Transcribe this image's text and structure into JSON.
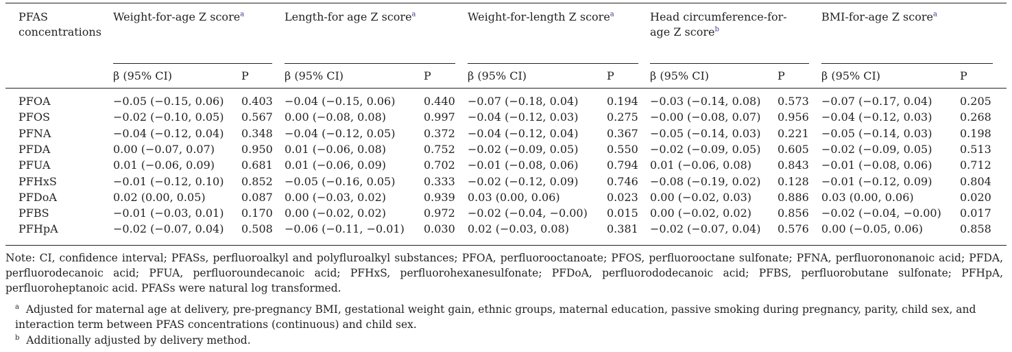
{
  "header": {
    "col0": "PFAS concentrations",
    "groups": [
      {
        "label": "Weight-for-age Z score",
        "sup": "a"
      },
      {
        "label": "Length-for age Z score",
        "sup": "a"
      },
      {
        "label": "Weight-for-length Z score",
        "sup": "a"
      },
      {
        "label": "Head circumference-for-age Z score",
        "sup": "b"
      },
      {
        "label": "BMI-for-age Z score",
        "sup": "a"
      }
    ],
    "beta_label": "β (95% CI)",
    "p_label": "P"
  },
  "rows": [
    {
      "name": "PFOA",
      "cells": [
        "−0.05 (−0.15, 0.06)",
        "0.403",
        "−0.04 (−0.15, 0.06)",
        "0.440",
        "−0.07 (−0.18, 0.04)",
        "0.194",
        "−0.03 (−0.14, 0.08)",
        "0.573",
        "−0.07 (−0.17, 0.04)",
        "0.205"
      ]
    },
    {
      "name": "PFOS",
      "cells": [
        "−0.02 (−0.10, 0.05)",
        "0.567",
        "0.00 (−0.08, 0.08)",
        "0.997",
        "−0.04 (−0.12, 0.03)",
        "0.275",
        "−0.00 (−0.08, 0.07)",
        "0.956",
        "−0.04 (−0.12, 0.03)",
        "0.268"
      ]
    },
    {
      "name": "PFNA",
      "cells": [
        "−0.04 (−0.12, 0.04)",
        "0.348",
        "−0.04 (−0.12, 0.05)",
        "0.372",
        "−0.04 (−0.12, 0.04)",
        "0.367",
        "−0.05 (−0.14, 0.03)",
        "0.221",
        "−0.05 (−0.14, 0.03)",
        "0.198"
      ]
    },
    {
      "name": "PFDA",
      "cells": [
        "0.00 (−0.07, 0.07)",
        "0.950",
        "0.01 (−0.06, 0.08)",
        "0.752",
        "−0.02 (−0.09, 0.05)",
        "0.550",
        "−0.02 (−0.09, 0.05)",
        "0.605",
        "−0.02 (−0.09, 0.05)",
        "0.513"
      ]
    },
    {
      "name": "PFUA",
      "cells": [
        "0.01 (−0.06, 0.09)",
        "0.681",
        "0.01 (−0.06, 0.09)",
        "0.702",
        "−0.01 (−0.08, 0.06)",
        "0.794",
        "0.01 (−0.06, 0.08)",
        "0.843",
        "−0.01 (−0.08, 0.06)",
        "0.712"
      ]
    },
    {
      "name": "PFHxS",
      "cells": [
        "−0.01 (−0.12, 0.10)",
        "0.852",
        "−0.05 (−0.16, 0.05)",
        "0.333",
        "−0.02 (−0.12, 0.09)",
        "0.746",
        "−0.08 (−0.19, 0.02)",
        "0.128",
        "−0.01 (−0.12, 0.09)",
        "0.804"
      ]
    },
    {
      "name": "PFDoA",
      "cells": [
        "0.02 (0.00, 0.05)",
        "0.087",
        "0.00 (−0.03, 0.02)",
        "0.939",
        "0.03 (0.00, 0.06)",
        "0.023",
        "0.00 (−0.02, 0.03)",
        "0.886",
        "0.03 (0.00, 0.06)",
        "0.020"
      ]
    },
    {
      "name": "PFBS",
      "cells": [
        "−0.01 (−0.03, 0.01)",
        "0.170",
        "0.00 (−0.02, 0.02)",
        "0.972",
        "−0.02 (−0.04, −0.00)",
        "0.015",
        "0.00 (−0.02, 0.02)",
        "0.856",
        "−0.02 (−0.04, −0.00)",
        "0.017"
      ]
    },
    {
      "name": "PFHpA",
      "cells": [
        "−0.02 (−0.07, 0.04)",
        "0.508",
        "−0.06 (−0.11, −0.01)",
        "0.030",
        "0.02 (−0.03, 0.08)",
        "0.381",
        "−0.02 (−0.07, 0.04)",
        "0.576",
        "0.00 (−0.05, 0.06)",
        "0.858"
      ]
    }
  ],
  "note": "Note: CI, confidence interval; PFASs, perfluoroalkyl and polyfluroalkyl substances; PFOA, perfluorooctanoate; PFOS, perfluorooctane sulfonate; PFNA, perfluorononanoic acid; PFDA, perfluorodecanoic acid; PFUA, perfluoroundecanoic acid; PFHxS, perfluorohexanesulfonate; PFDoA, perfluorododecanoic acid; PFBS, perfluorobutane sulfonate; PFHpA, perfluoroheptanoic acid. PFASs were natural log transformed.",
  "footnotes": [
    {
      "mark": "a",
      "text": "Adjusted for maternal age at delivery, pre-pregnancy BMI, gestational weight gain, ethnic groups, maternal education, passive smoking during pregnancy, parity, child sex, and interaction term between PFAS concentrations (continuous) and child sex."
    },
    {
      "mark": "b",
      "text": "Additionally adjusted by delivery method."
    }
  ]
}
